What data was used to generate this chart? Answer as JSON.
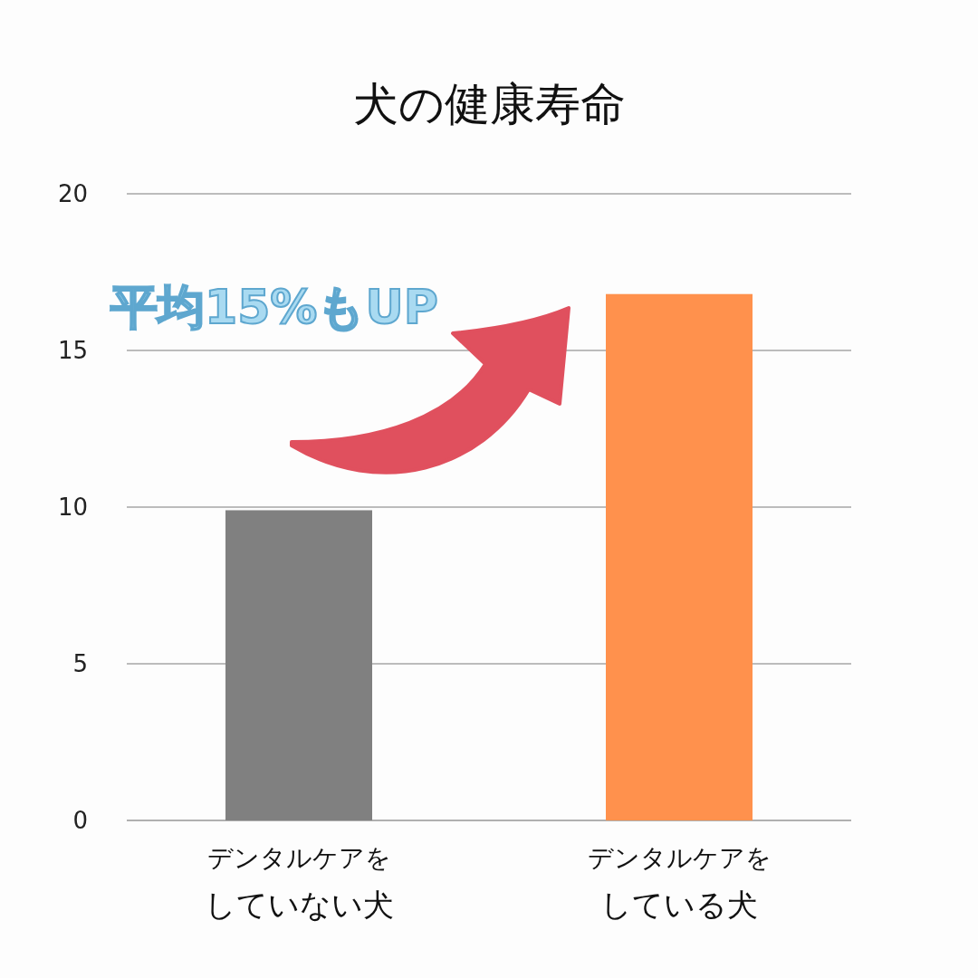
{
  "chart_data": {
    "type": "bar",
    "title": "犬の健康寿命",
    "categories": [
      "デンタルケアをしていない犬",
      "デンタルケアをしている犬"
    ],
    "values": [
      9.9,
      16.8
    ],
    "colors": [
      "#808080",
      "#ff914d"
    ],
    "ylim": [
      0,
      20
    ],
    "yticks": [
      0,
      5,
      10,
      15,
      20
    ],
    "grid": "y",
    "annotations": [
      "平均15%もUP"
    ]
  }
}
